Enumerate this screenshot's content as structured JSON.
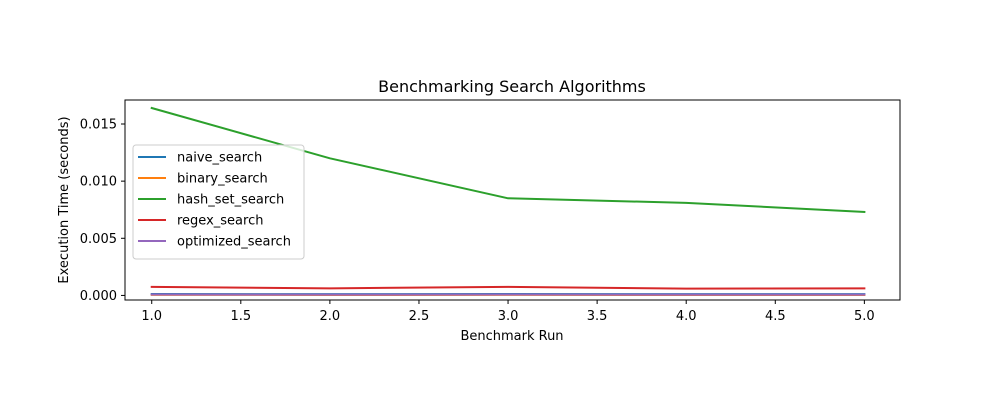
{
  "chart_data": {
    "type": "line",
    "title": "Benchmarking Search Algorithms",
    "xlabel": "Benchmark Run",
    "ylabel": "Execution Time (seconds)",
    "x": [
      1,
      2,
      3,
      4,
      5
    ],
    "xlim": [
      0.85,
      5.2
    ],
    "ylim": [
      -0.0004,
      0.0171
    ],
    "xticks": [
      "1.0",
      "1.5",
      "2.0",
      "2.5",
      "3.0",
      "3.5",
      "4.0",
      "4.5",
      "5.0"
    ],
    "xtick_values": [
      1.0,
      1.5,
      2.0,
      2.5,
      3.0,
      3.5,
      4.0,
      4.5,
      5.0
    ],
    "yticks": [
      "0.000",
      "0.005",
      "0.010",
      "0.015"
    ],
    "ytick_values": [
      0.0,
      0.005,
      0.01,
      0.015
    ],
    "grid": false,
    "legend_position": "center-left",
    "series": [
      {
        "name": "naive_search",
        "color": "#1f77b4",
        "values": [
          0.00012,
          0.00011,
          0.00012,
          0.00011,
          0.00011
        ]
      },
      {
        "name": "binary_search",
        "color": "#ff7f0e",
        "values": [
          5e-05,
          4e-05,
          5e-05,
          4e-05,
          4e-05
        ]
      },
      {
        "name": "hash_set_search",
        "color": "#2ca02c",
        "values": [
          0.0164,
          0.012,
          0.0085,
          0.0081,
          0.0073
        ]
      },
      {
        "name": "regex_search",
        "color": "#d62728",
        "values": [
          0.00075,
          0.00062,
          0.00075,
          0.0006,
          0.00062
        ]
      },
      {
        "name": "optimized_search",
        "color": "#9467bd",
        "values": [
          8e-05,
          7e-05,
          8e-05,
          7e-05,
          7e-05
        ]
      }
    ]
  }
}
